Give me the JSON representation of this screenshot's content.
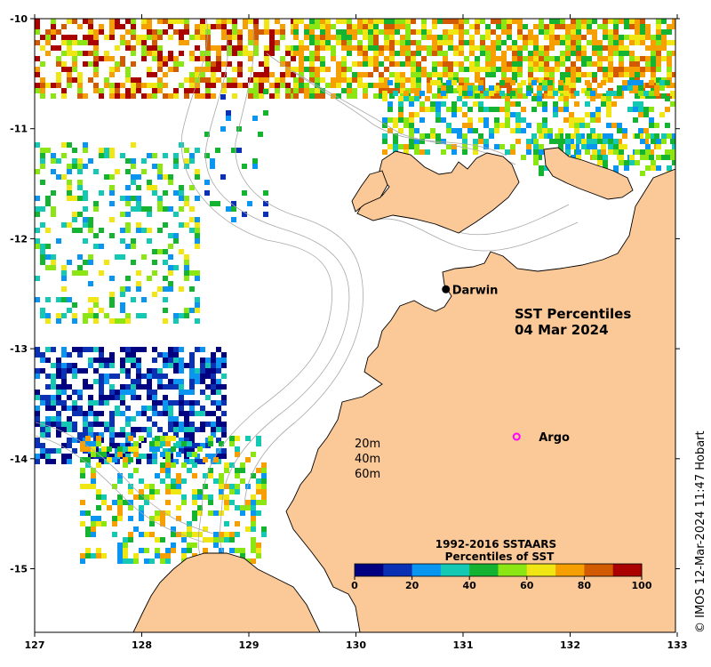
{
  "map": {
    "title_line1": "SST Percentiles",
    "title_line2": "04 Mar 2024",
    "x_ticks": [
      "127",
      "128",
      "129",
      "130",
      "131",
      "132",
      "133"
    ],
    "y_ticks": [
      "-10",
      "-11",
      "-12",
      "-13",
      "-14",
      "-15"
    ],
    "places": [
      {
        "name": "Darwin",
        "lon": 130.84,
        "lat": -12.46,
        "marker": "dot"
      },
      {
        "name": "Argo",
        "lon": 131.5,
        "lat": -13.8,
        "marker": "circle"
      }
    ],
    "contour_legend": [
      "20m",
      "40m",
      "60m"
    ],
    "credit": "© IMOS 12-Mar-2024 11:47 Hobart"
  },
  "colorbar": {
    "title_line1": "1992-2016 SSTAARS",
    "title_line2": "Percentiles of SST",
    "ticks": [
      "0",
      "20",
      "40",
      "60",
      "80",
      "100"
    ],
    "colors": [
      "#000080",
      "#0a30b4",
      "#0a96f0",
      "#14c8b4",
      "#14b432",
      "#8ce614",
      "#f0e614",
      "#f5a000",
      "#d25a00",
      "#aa0000"
    ]
  },
  "colors": {
    "land": "#fbc898",
    "coast": "#000000",
    "contour": "#a8a8a8",
    "argo_marker": "#ff00ff"
  }
}
